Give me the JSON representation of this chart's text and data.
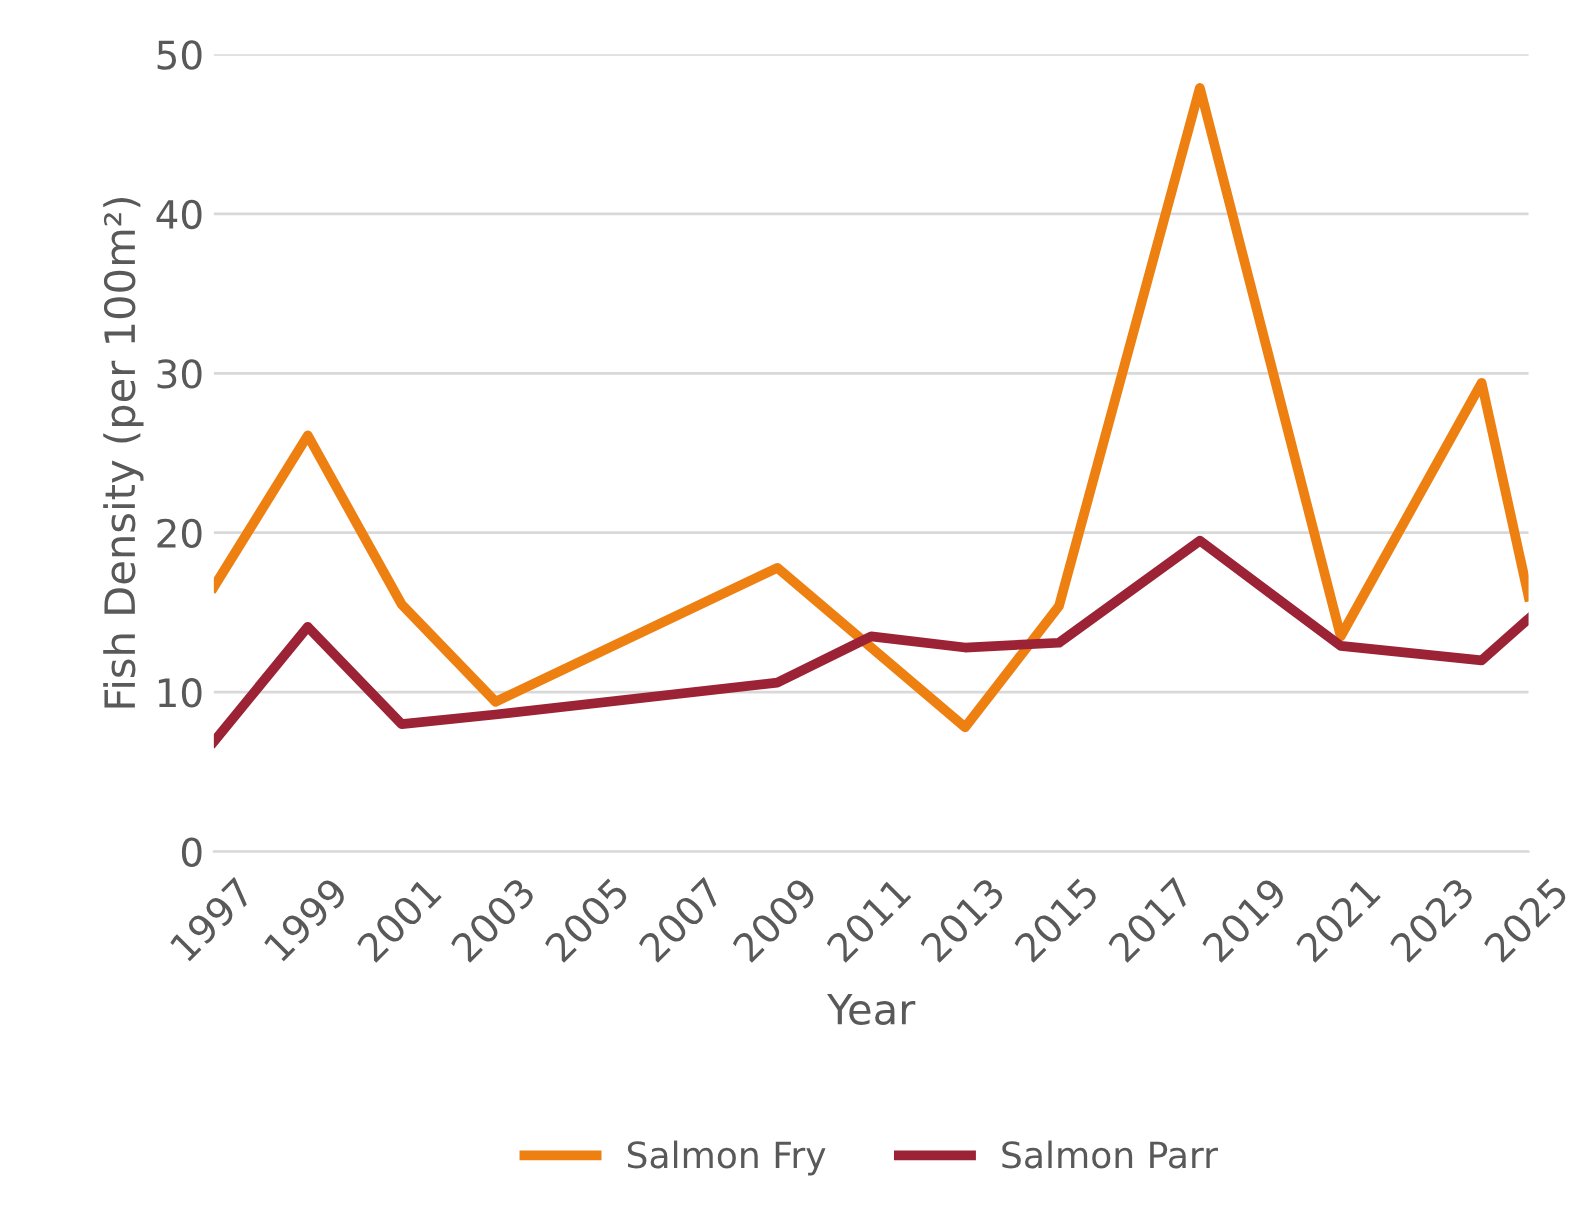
{
  "chart_data": {
    "type": "line",
    "xlabel": "Year",
    "ylabel": "Fish Density (per 100m²)",
    "series": [
      {
        "name": "Salmon Fry",
        "color": "#ee8012",
        "x": [
          1997,
          1999,
          2001,
          2003,
          2009,
          2013,
          2015,
          2018,
          2021,
          2024,
          2025
        ],
        "values": [
          16.6,
          26.1,
          15.5,
          9.4,
          17.8,
          7.8,
          15.4,
          47.9,
          13.5,
          29.4,
          16.0
        ]
      },
      {
        "name": "Salmon Parr",
        "color": "#9b2335",
        "x": [
          1997,
          1999,
          2001,
          2003,
          2009,
          2011,
          2013,
          2015,
          2018,
          2021,
          2024,
          2025
        ],
        "values": [
          6.9,
          14.1,
          8.0,
          8.6,
          10.6,
          13.5,
          12.8,
          13.1,
          19.5,
          12.9,
          12.0,
          14.6
        ]
      }
    ],
    "xlim": [
      1997,
      2025
    ],
    "xticks": [
      1997,
      1999,
      2001,
      2003,
      2005,
      2007,
      2009,
      2011,
      2013,
      2015,
      2017,
      2019,
      2021,
      2023,
      2025
    ],
    "ylim": [
      0,
      50
    ],
    "yticks": [
      0,
      10,
      20,
      30,
      40,
      50
    ],
    "grid": "y",
    "legend": "bottom",
    "marker": "none",
    "line_style": "solid"
  }
}
